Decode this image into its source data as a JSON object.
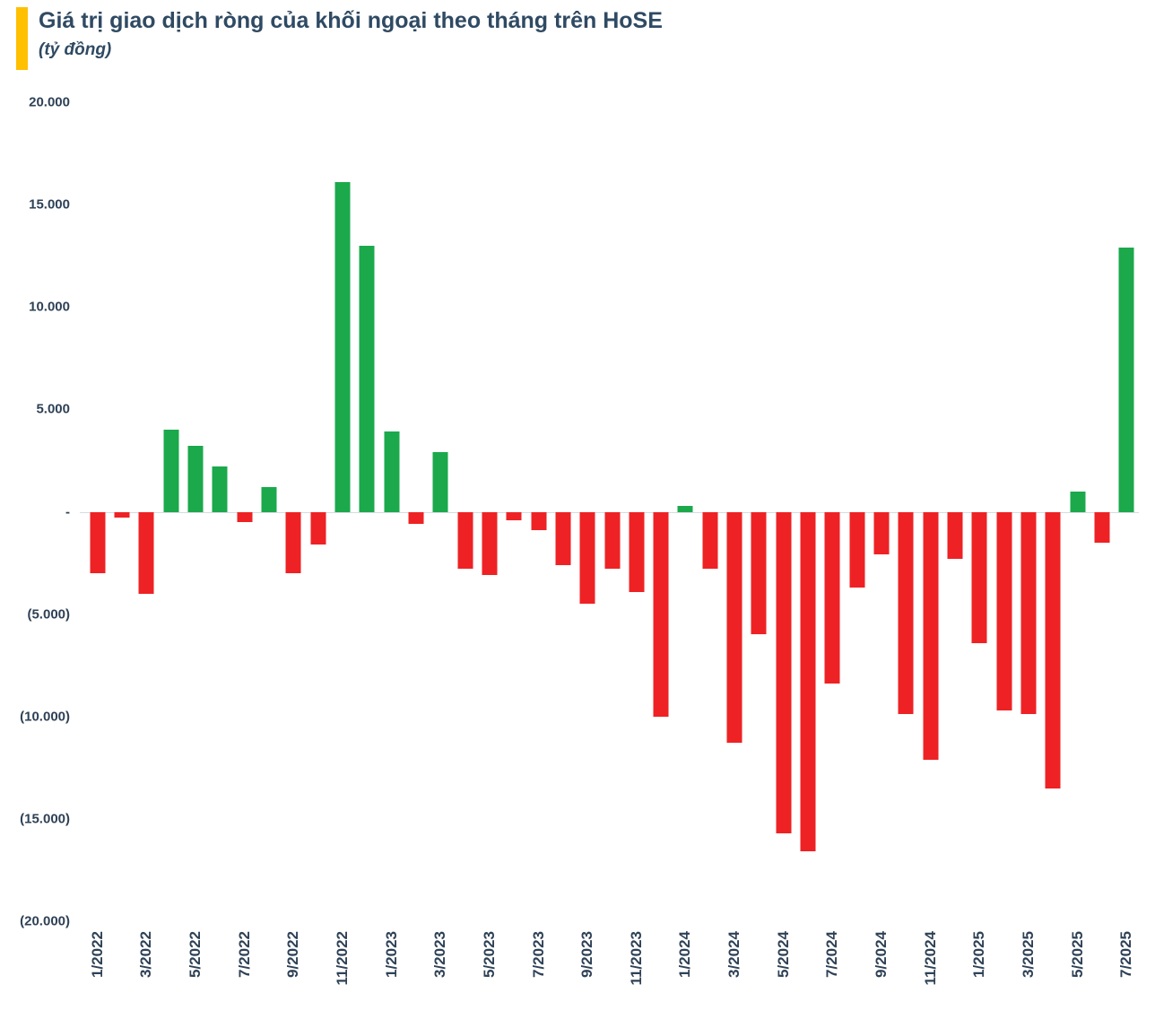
{
  "header": {
    "title": "Giá trị giao dịch ròng của khối ngoại theo tháng trên HoSE",
    "subtitle": "(tỷ đồng)"
  },
  "colors": {
    "accent": "#FFC000",
    "text": "#2E4156",
    "title_text": "#2F4A63",
    "positive": "#1BA94C",
    "negative": "#EE2224",
    "axis_line": "#D6DCE2"
  },
  "chart_data": {
    "type": "bar",
    "title": "Giá trị giao dịch ròng của khối ngoại theo tháng trên HoSE",
    "unit": "tỷ đồng",
    "xlabel": "",
    "ylabel": "",
    "grid": false,
    "legend": "none",
    "ylim": [
      -20000,
      20000
    ],
    "y_ticks": [
      20000,
      15000,
      10000,
      5000,
      0,
      -5000,
      -10000,
      -15000,
      -20000
    ],
    "y_tick_labels": [
      "20.000",
      "15.000",
      "10.000",
      "5.000",
      "-",
      "(5.000)",
      "(10.000)",
      "(15.000)",
      "(20.000)"
    ],
    "x_tick_every": 2,
    "categories": [
      "1/2022",
      "2/2022",
      "3/2022",
      "4/2022",
      "5/2022",
      "6/2022",
      "7/2022",
      "8/2022",
      "9/2022",
      "10/2022",
      "11/2022",
      "12/2022",
      "1/2023",
      "2/2023",
      "3/2023",
      "4/2023",
      "5/2023",
      "6/2023",
      "7/2023",
      "8/2023",
      "9/2023",
      "10/2023",
      "11/2023",
      "12/2023",
      "1/2024",
      "2/2024",
      "3/2024",
      "4/2024",
      "5/2024",
      "6/2024",
      "7/2024",
      "8/2024",
      "9/2024",
      "10/2024",
      "11/2024",
      "12/2024",
      "1/2025",
      "2/2025",
      "3/2025",
      "4/2025",
      "5/2025",
      "6/2025",
      "7/2025"
    ],
    "values": [
      -3000,
      -300,
      -4000,
      4000,
      3200,
      2200,
      -500,
      1200,
      -3000,
      -1600,
      16100,
      13000,
      3900,
      -600,
      2900,
      -2800,
      -3100,
      -400,
      -900,
      -2600,
      -4500,
      -2800,
      -3900,
      -10000,
      300,
      -2800,
      -11300,
      -6000,
      -15700,
      -16600,
      -8400,
      -3700,
      -2100,
      -9900,
      -12100,
      -2300,
      -6400,
      -9700,
      -9900,
      -13500,
      1000,
      -1500,
      12900
    ],
    "positive_color": "#1BA94C",
    "negative_color": "#EE2224"
  }
}
